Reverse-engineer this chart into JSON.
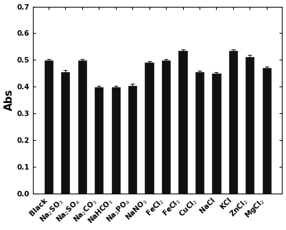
{
  "categories": [
    "Black",
    "Na$_2$SO$_3$",
    "Na$_2$SO$_4$",
    "Na$_2$CO$_3$",
    "NaHCO$_3$",
    "Na$_3$PO$_4$",
    "NaNO$_3$",
    "FeCl$_2$",
    "FeCl$_3$",
    "CuCl$_2$",
    "NaCl",
    "KCl",
    "ZnCl$_2$",
    "MgCl$_2$"
  ],
  "values": [
    0.499,
    0.455,
    0.499,
    0.399,
    0.399,
    0.404,
    0.49,
    0.499,
    0.534,
    0.455,
    0.449,
    0.534,
    0.512,
    0.47
  ],
  "errors": [
    0.005,
    0.006,
    0.005,
    0.005,
    0.005,
    0.006,
    0.005,
    0.005,
    0.006,
    0.005,
    0.005,
    0.005,
    0.006,
    0.006
  ],
  "bar_color": "#111111",
  "bar_edge_color": "#111111",
  "error_color": "#111111",
  "ylabel": "Abs",
  "ylim": [
    0.0,
    0.7
  ],
  "yticks": [
    0.0,
    0.1,
    0.2,
    0.3,
    0.4,
    0.5,
    0.6,
    0.7
  ],
  "bar_width": 0.5,
  "tick_fontsize": 7.5,
  "ylabel_fontsize": 11,
  "background_color": "#ffffff"
}
